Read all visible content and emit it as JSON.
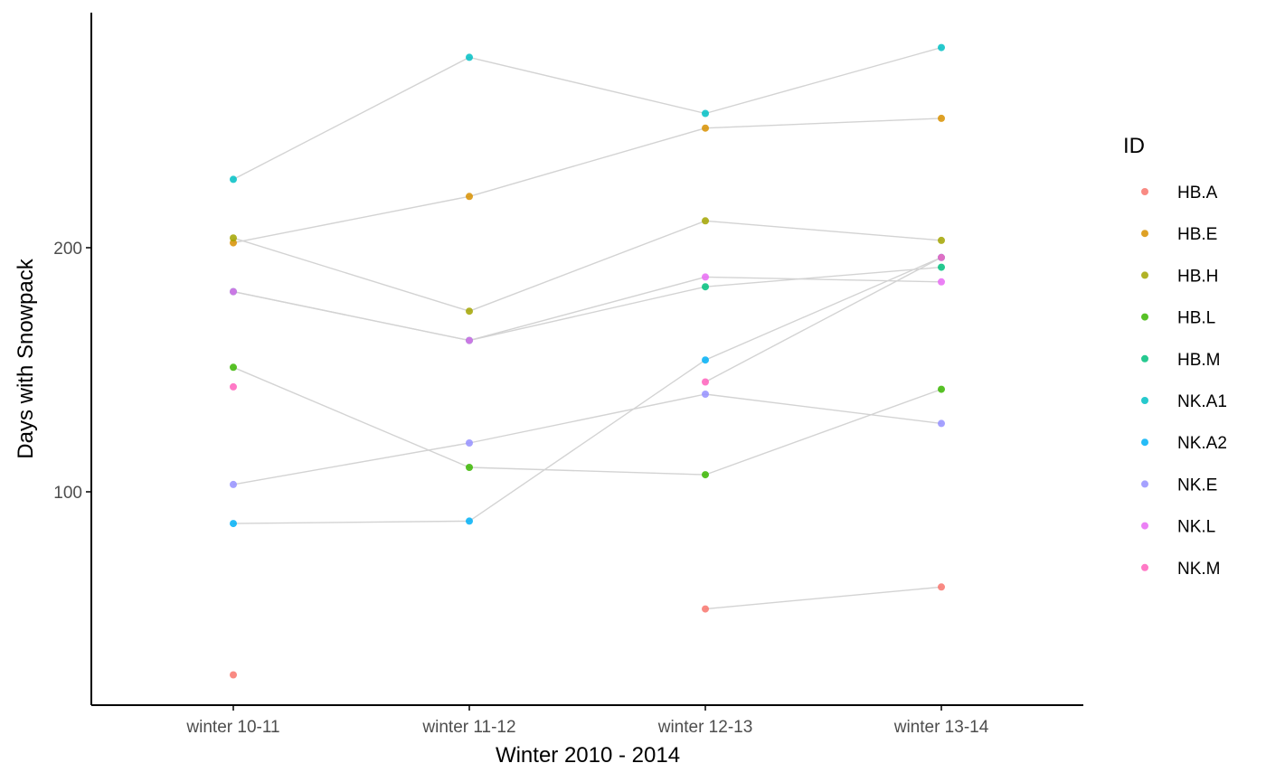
{
  "chart_data": {
    "type": "line",
    "title": "",
    "xlabel": "Winter 2010 - 2014",
    "ylabel": "Days with Snowpack",
    "categories": [
      "winter 10-11",
      "winter 11-12",
      "winter 12-13",
      "winter 13-14"
    ],
    "yticks": [
      100,
      200
    ],
    "ylim": [
      13,
      298
    ],
    "grid": false,
    "legend": {
      "title": "ID",
      "placement": "right"
    },
    "connector_color": "#d3d3d3",
    "series": [
      {
        "name": "HB.A",
        "color": "#F8766D",
        "values": [
          25,
          null,
          52,
          61
        ]
      },
      {
        "name": "HB.E",
        "color": "#D89000",
        "values": [
          202,
          221,
          249,
          253
        ]
      },
      {
        "name": "HB.H",
        "color": "#A3A500",
        "values": [
          204,
          174,
          211,
          203
        ]
      },
      {
        "name": "HB.L",
        "color": "#39B600",
        "values": [
          151,
          110,
          107,
          142
        ]
      },
      {
        "name": "HB.M",
        "color": "#00BF7D",
        "values": [
          182,
          162,
          184,
          192
        ]
      },
      {
        "name": "NK.A1",
        "color": "#00BFC4",
        "values": [
          228,
          278,
          255,
          282
        ]
      },
      {
        "name": "NK.A2",
        "color": "#00B0F6",
        "values": [
          87,
          88,
          154,
          196
        ]
      },
      {
        "name": "NK.E",
        "color": "#9590FF",
        "values": [
          103,
          120,
          140,
          128
        ]
      },
      {
        "name": "NK.L",
        "color": "#E76BF3",
        "values": [
          182,
          162,
          188,
          186
        ]
      },
      {
        "name": "NK.M",
        "color": "#FF62BC",
        "values": [
          143,
          null,
          145,
          196
        ]
      }
    ]
  }
}
